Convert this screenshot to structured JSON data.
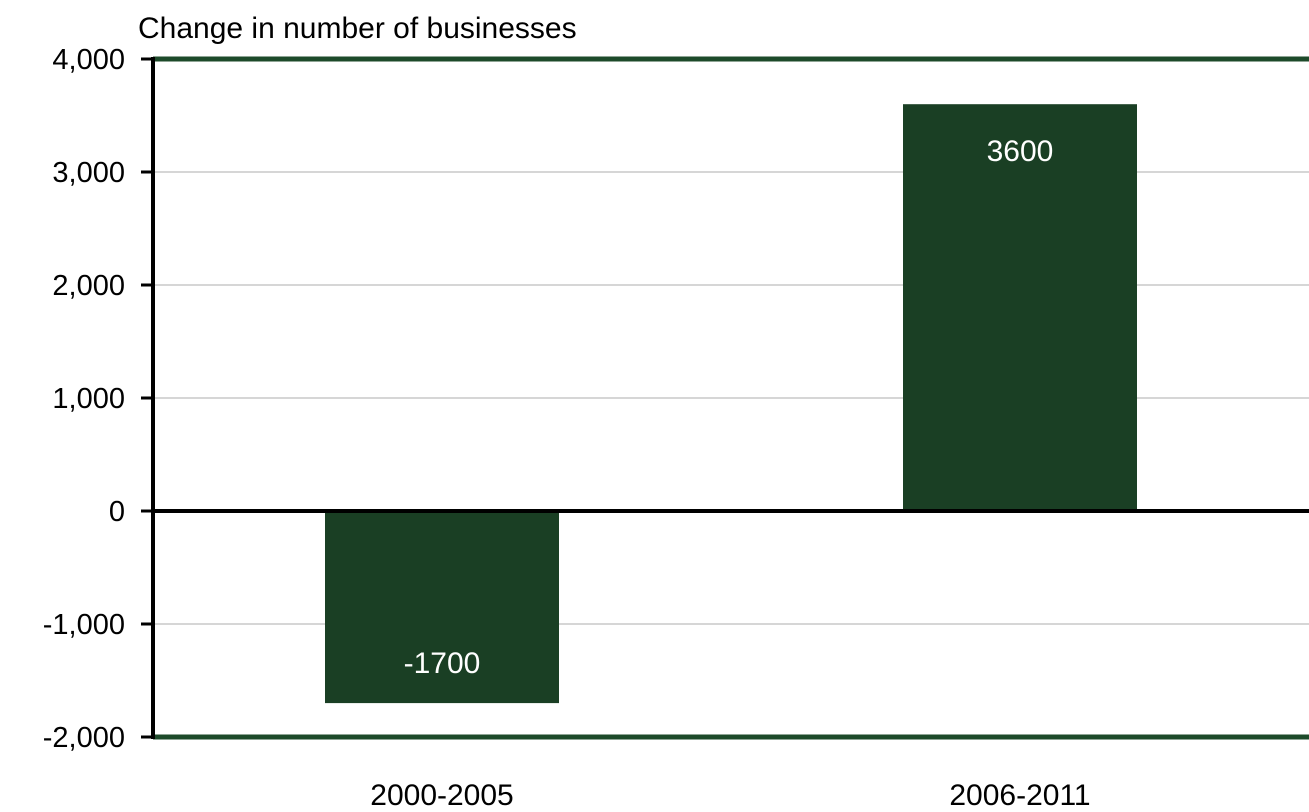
{
  "chart_data": {
    "type": "bar",
    "title": "",
    "ylabel": "Change in number of businesses",
    "xlabel": "",
    "categories": [
      "2000-2005",
      "2006-2011"
    ],
    "values": [
      -1700,
      3600
    ],
    "data_labels": [
      "-1700",
      "3600"
    ],
    "ylim": [
      -2000,
      4000
    ],
    "yticks": [
      4000,
      3000,
      2000,
      1000,
      0,
      -1000,
      -2000
    ],
    "ytick_labels": [
      "4,000",
      "3,000",
      "2,000",
      "1,000",
      "0",
      "-1,000",
      "-2,000"
    ],
    "grid": true,
    "legend": "none",
    "colors": {
      "bar": "#1a3f24",
      "frame": "#1d4a2a",
      "axis": "#000000",
      "grid": "#c8c8c8",
      "bar_label": "#ffffff"
    }
  }
}
